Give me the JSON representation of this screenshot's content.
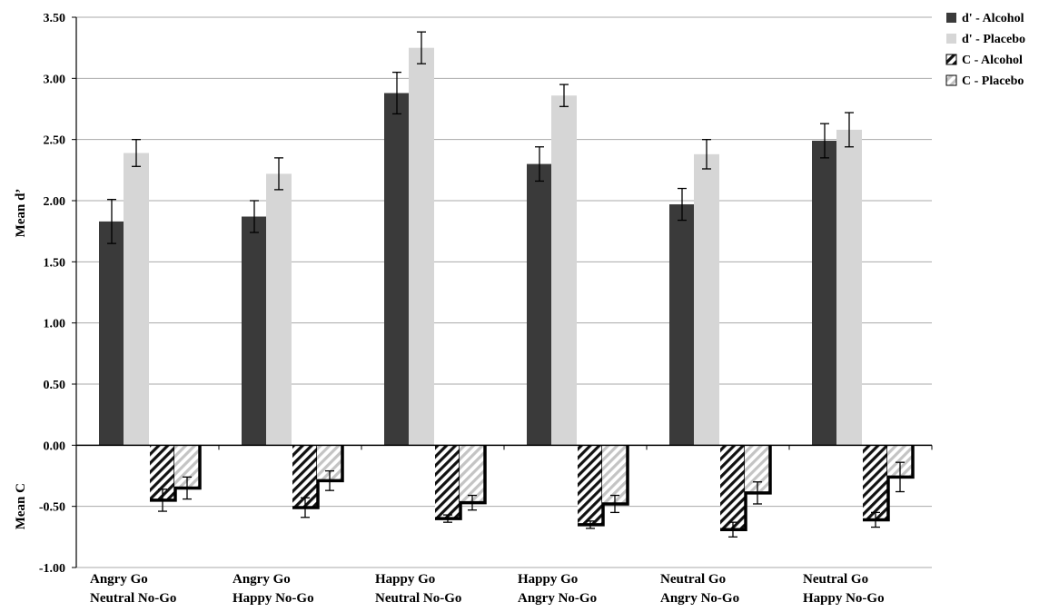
{
  "chart_data": {
    "type": "bar",
    "categories": [
      [
        "Angry Go",
        "Neutral No-Go"
      ],
      [
        "Angry Go",
        "Happy No-Go"
      ],
      [
        "Happy Go",
        "Neutral No-Go"
      ],
      [
        "Happy Go",
        "Angry No-Go"
      ],
      [
        "Neutral Go",
        "Angry No-Go"
      ],
      [
        "Neutral Go",
        "Happy No-Go"
      ]
    ],
    "series": [
      {
        "name": "d' - Alcohol",
        "pattern": "solid",
        "color": "#3a3a3a",
        "values": [
          1.83,
          1.87,
          2.88,
          2.3,
          1.97,
          2.49
        ],
        "errors": [
          0.18,
          0.13,
          0.17,
          0.14,
          0.13,
          0.14
        ]
      },
      {
        "name": "d' - Placebo",
        "pattern": "solid",
        "color": "#d6d6d6",
        "values": [
          2.39,
          2.22,
          3.25,
          2.86,
          2.38,
          2.58
        ],
        "errors": [
          0.11,
          0.13,
          0.13,
          0.09,
          0.12,
          0.14
        ]
      },
      {
        "name": "C - Alcohol",
        "pattern": "hatch-dark",
        "color": "#000000",
        "values": [
          -0.45,
          -0.51,
          -0.6,
          -0.65,
          -0.69,
          -0.61
        ],
        "errors": [
          0.09,
          0.08,
          0.03,
          0.03,
          0.06,
          0.06
        ]
      },
      {
        "name": "C - Placebo",
        "pattern": "hatch-light",
        "color": "#c8c8c8",
        "values": [
          -0.35,
          -0.29,
          -0.47,
          -0.48,
          -0.39,
          -0.26
        ],
        "errors": [
          0.09,
          0.08,
          0.06,
          0.07,
          0.09,
          0.12
        ]
      }
    ],
    "ylabel_top": "Mean d’",
    "ylabel_bottom": "Mean C",
    "yticks": [
      "3.50",
      "3.00",
      "2.50",
      "2.00",
      "1.50",
      "1.00",
      "0.50",
      "0.00",
      "-0.50",
      "-1.00"
    ],
    "ylim": [
      -1.0,
      3.5
    ],
    "grid": true,
    "legend_position": "top-right",
    "error_bars": true
  }
}
